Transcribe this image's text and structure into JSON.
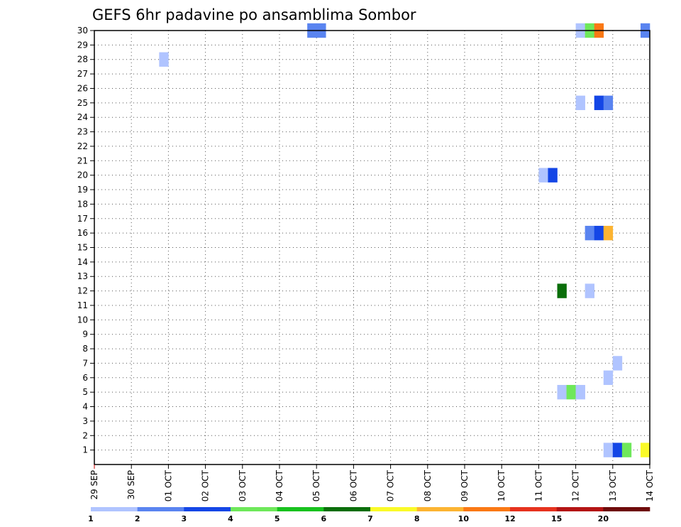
{
  "chart_data": {
    "type": "heatmap",
    "title": "GEFS 6hr padavine po ansamblima Sombor",
    "xlabel": "",
    "ylabel": "",
    "x_tick_labels": [
      "29 SEP",
      "30 SEP",
      "01 OCT",
      "02 OCT",
      "03 OCT",
      "04 OCT",
      "05 OCT",
      "06 OCT",
      "07 OCT",
      "08 OCT",
      "09 OCT",
      "10 OCT",
      "11 OCT",
      "12 OCT",
      "13 OCT",
      "14 OCT"
    ],
    "x_range_days": [
      0,
      15
    ],
    "y_tick_labels": [
      "1",
      "2",
      "3",
      "4",
      "5",
      "6",
      "7",
      "8",
      "9",
      "10",
      "11",
      "12",
      "13",
      "14",
      "15",
      "16",
      "17",
      "18",
      "19",
      "20",
      "21",
      "22",
      "23",
      "24",
      "25",
      "26",
      "27",
      "28",
      "29",
      "30"
    ],
    "ylim": [
      0,
      30
    ],
    "grid": true,
    "levels": [
      "1",
      "2",
      "3",
      "4",
      "5",
      "6",
      "7",
      "8",
      "10",
      "12",
      "15",
      "20"
    ],
    "level_colors": [
      "#b0c4ff",
      "#5a84f0",
      "#1446e6",
      "#6ee85a",
      "#18c21e",
      "#0a6e0a",
      "#fafa28",
      "#fcb432",
      "#fa7814",
      "#e6321e",
      "#b41414",
      "#6e0a0a"
    ],
    "cells": [
      {
        "member": 30,
        "day": 5.75,
        "level": 2
      },
      {
        "member": 30,
        "day": 6.0,
        "level": 2
      },
      {
        "member": 30,
        "day": 13.0,
        "level": 1
      },
      {
        "member": 30,
        "day": 13.25,
        "level": 4
      },
      {
        "member": 30,
        "day": 13.5,
        "level": 9
      },
      {
        "member": 30,
        "day": 14.75,
        "level": 2
      },
      {
        "member": 28,
        "day": 1.75,
        "level": 1
      },
      {
        "member": 25,
        "day": 13.0,
        "level": 1
      },
      {
        "member": 25,
        "day": 13.5,
        "level": 3
      },
      {
        "member": 25,
        "day": 13.75,
        "level": 2
      },
      {
        "member": 20,
        "day": 12.0,
        "level": 1
      },
      {
        "member": 20,
        "day": 12.25,
        "level": 3
      },
      {
        "member": 16,
        "day": 13.25,
        "level": 2
      },
      {
        "member": 16,
        "day": 13.5,
        "level": 3
      },
      {
        "member": 16,
        "day": 13.75,
        "level": 8
      },
      {
        "member": 12,
        "day": 12.5,
        "level": 6
      },
      {
        "member": 12,
        "day": 13.25,
        "level": 1
      },
      {
        "member": 7,
        "day": 14.0,
        "level": 1
      },
      {
        "member": 6,
        "day": 13.75,
        "level": 1
      },
      {
        "member": 5,
        "day": 12.5,
        "level": 1
      },
      {
        "member": 5,
        "day": 12.75,
        "level": 4
      },
      {
        "member": 5,
        "day": 13.0,
        "level": 1
      },
      {
        "member": 1,
        "day": 13.75,
        "level": 1
      },
      {
        "member": 1,
        "day": 14.0,
        "level": 3
      },
      {
        "member": 1,
        "day": 14.25,
        "level": 4
      },
      {
        "member": 1,
        "day": 14.75,
        "level": 7
      }
    ]
  }
}
